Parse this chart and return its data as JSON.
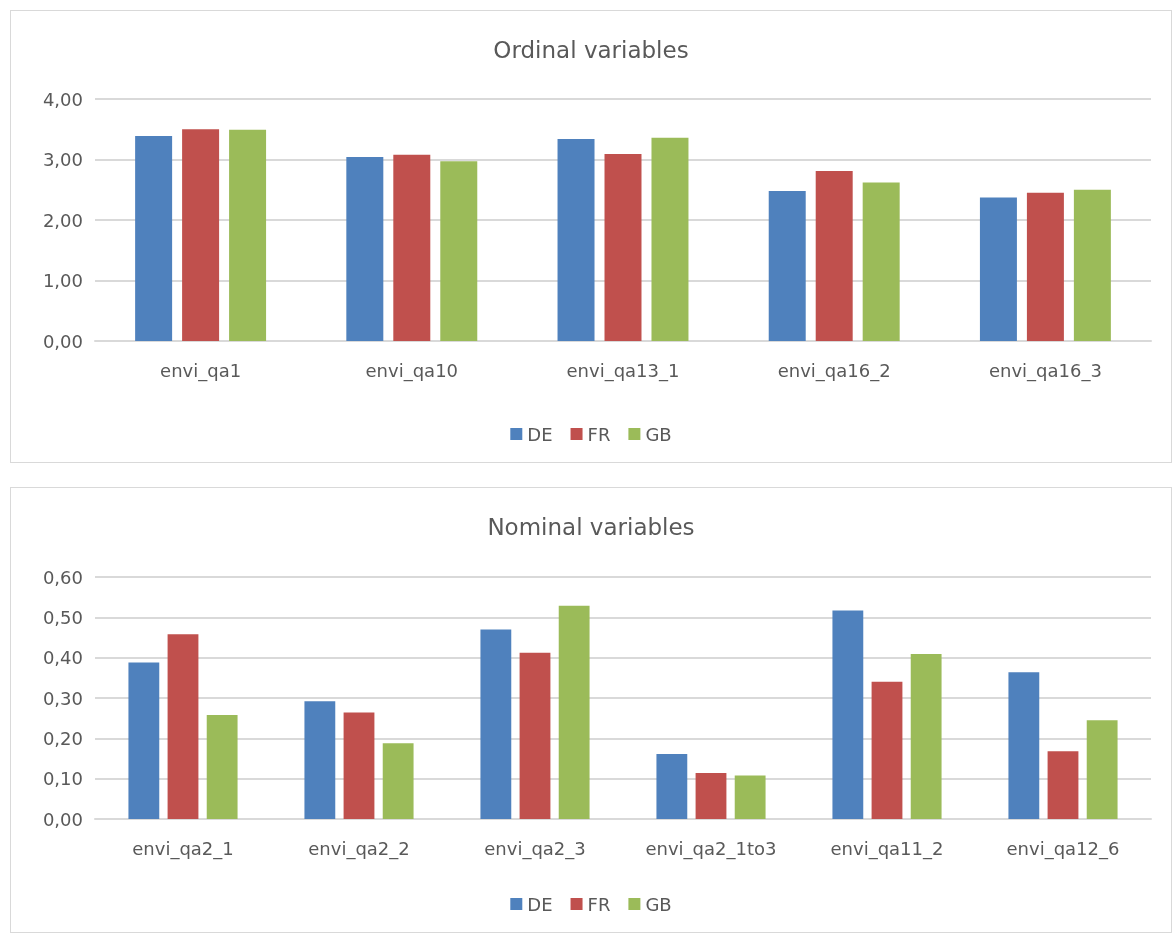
{
  "chart_data": [
    {
      "type": "bar",
      "title": "Ordinal variables",
      "categories": [
        "envi_qa1",
        "envi_qa10",
        "envi_qa13_1",
        "envi_qa16_2",
        "envi_qa16_3"
      ],
      "series": [
        {
          "name": "DE",
          "color": "#4f81bd",
          "values": [
            3.39,
            3.04,
            3.34,
            2.48,
            2.37
          ]
        },
        {
          "name": "FR",
          "color": "#c0504d",
          "values": [
            3.5,
            3.08,
            3.09,
            2.81,
            2.45
          ]
        },
        {
          "name": "GB",
          "color": "#9bbb59",
          "values": [
            3.49,
            2.97,
            3.36,
            2.62,
            2.5
          ]
        }
      ],
      "ylim": [
        0,
        4
      ],
      "yticks": [
        {
          "value": 0,
          "label": "0,00"
        },
        {
          "value": 1,
          "label": "1,00"
        },
        {
          "value": 2,
          "label": "2,00"
        },
        {
          "value": 3,
          "label": "3,00"
        },
        {
          "value": 4,
          "label": "4,00"
        }
      ],
      "grid": "y",
      "legend": "bottom"
    },
    {
      "type": "bar",
      "title": "Nominal variables",
      "categories": [
        "envi_qa2_1",
        "envi_qa2_2",
        "envi_qa2_3",
        "envi_qa2_1to3",
        "envi_qa11_2",
        "envi_qa12_6"
      ],
      "series": [
        {
          "name": "DE",
          "color": "#4f81bd",
          "values": [
            0.388,
            0.292,
            0.47,
            0.161,
            0.517,
            0.364
          ]
        },
        {
          "name": "FR",
          "color": "#c0504d",
          "values": [
            0.458,
            0.264,
            0.412,
            0.114,
            0.34,
            0.168
          ]
        },
        {
          "name": "GB",
          "color": "#9bbb59",
          "values": [
            0.258,
            0.188,
            0.529,
            0.108,
            0.409,
            0.245
          ]
        }
      ],
      "ylim": [
        0,
        0.6
      ],
      "yticks": [
        {
          "value": 0,
          "label": "0,00"
        },
        {
          "value": 0.1,
          "label": "0,10"
        },
        {
          "value": 0.2,
          "label": "0,20"
        },
        {
          "value": 0.3,
          "label": "0,30"
        },
        {
          "value": 0.4,
          "label": "0,40"
        },
        {
          "value": 0.5,
          "label": "0,50"
        },
        {
          "value": 0.6,
          "label": "0,60"
        }
      ],
      "grid": "y",
      "legend": "bottom"
    }
  ]
}
